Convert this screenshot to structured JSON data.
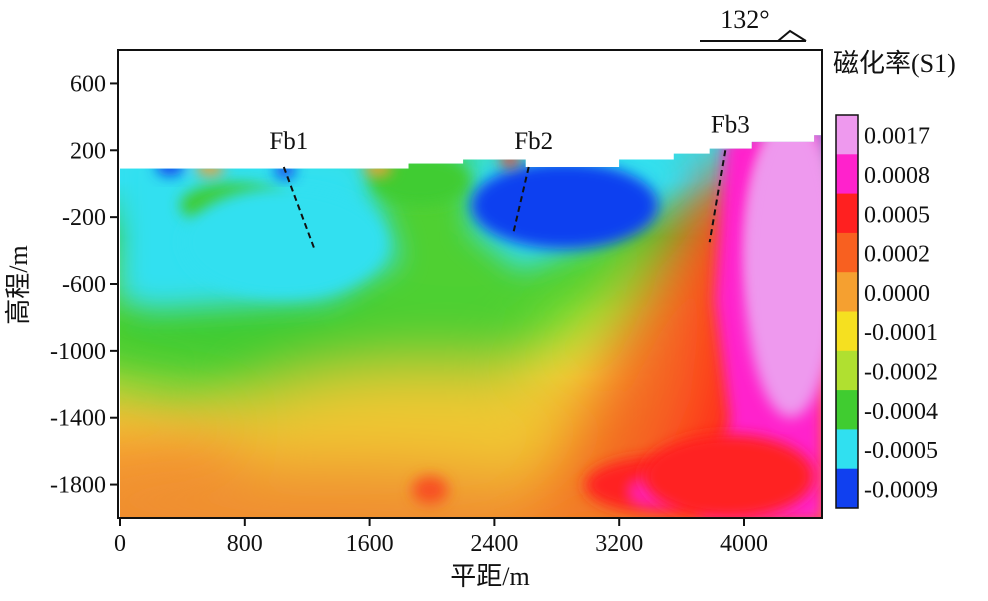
{
  "chart_data": {
    "type": "heatmap",
    "title": "",
    "xlabel": "平距/m",
    "ylabel": "高程/m",
    "xlim": [
      0,
      4500
    ],
    "ylim": [
      -2000,
      800
    ],
    "xticks": [
      "0",
      "800",
      "1600",
      "2400",
      "3200",
      "4000"
    ],
    "xtick_values": [
      0,
      800,
      1600,
      2400,
      3200,
      4000
    ],
    "yticks": [
      "600",
      "200",
      "-200",
      "-600",
      "-1000",
      "-1400",
      "-1800"
    ],
    "ytick_values": [
      600,
      200,
      -200,
      -600,
      -1000,
      -1400,
      -1800
    ],
    "direction_label": "132°",
    "colorbar": {
      "title": "磁化率(S1)",
      "labels": [
        "0.0017",
        "0.0008",
        "0.0005",
        "0.0002",
        "0.0000",
        "-0.0001",
        "-0.0002",
        "-0.0004",
        "-0.0005",
        "-0.0009"
      ],
      "colors": [
        "#ee99ee",
        "#ff22cc",
        "#ff2020",
        "#f86020",
        "#f5a030",
        "#f5e020",
        "#b0e030",
        "#40cc30",
        "#30e0f0",
        "#1040f0"
      ]
    },
    "faults": [
      {
        "name": "Fb1",
        "x": [
          1050,
          1250
        ],
        "y": [
          100,
          -400
        ]
      },
      {
        "name": "Fb2",
        "x": [
          2620,
          2520
        ],
        "y": [
          100,
          -300
        ]
      },
      {
        "name": "Fb3",
        "x": [
          3880,
          3780
        ],
        "y": [
          200,
          -350
        ]
      }
    ],
    "topography": {
      "x": [
        0,
        1850,
        1850,
        2200,
        2200,
        2600,
        2600,
        3200,
        3200,
        3550,
        3550,
        3780,
        3780,
        4050,
        4050,
        4450,
        4450,
        4500
      ],
      "y": [
        90,
        90,
        120,
        120,
        145,
        145,
        100,
        100,
        145,
        145,
        180,
        180,
        210,
        210,
        250,
        250,
        290,
        290
      ]
    },
    "anomalies": [
      {
        "label": "-0.0009",
        "x": 2850,
        "y": -130,
        "rx": 600,
        "ry": 260
      },
      {
        "label": "-0.0005",
        "x": 1050,
        "y": -350,
        "rx": 650,
        "ry": 330
      },
      {
        "label": "0.0017",
        "x": 4300,
        "y": -500,
        "rx": 300,
        "ry": 900
      },
      {
        "label": "0.0005",
        "x": 3900,
        "y": -1750,
        "rx": 550,
        "ry": 250
      }
    ]
  }
}
